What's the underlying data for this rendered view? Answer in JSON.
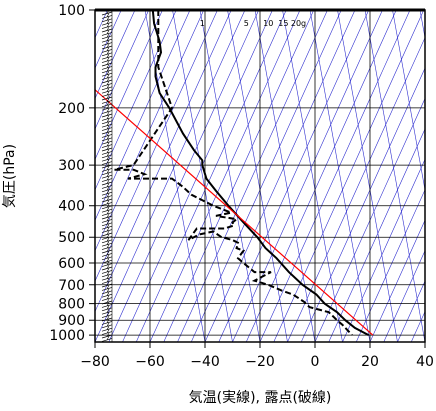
{
  "chart_data": {
    "type": "line",
    "title": "",
    "xlabel": "気温(実線), 露点(破線)",
    "ylabel": "気圧(hPa)",
    "xlim": [
      -80,
      40
    ],
    "ylim": [
      1050,
      100
    ],
    "y_scale": "log",
    "x_ticks": [
      -80,
      -60,
      -40,
      -20,
      0,
      20,
      40
    ],
    "x_tick_labels": [
      "−80",
      "−60",
      "−40",
      "−20",
      "0",
      "20",
      "40"
    ],
    "y_ticks": [
      100,
      200,
      300,
      400,
      500,
      600,
      700,
      800,
      900,
      1000
    ],
    "y_tick_labels": [
      "100",
      "200",
      "300",
      "400",
      "500",
      "600",
      "700",
      "800",
      "900",
      "1000"
    ],
    "grid": true,
    "mixing_ratio_labels": [
      "1",
      "5",
      "10",
      "15",
      "20g"
    ],
    "colors": {
      "temperature": "#000000",
      "dewpoint": "#000000",
      "reference": "#ff0000",
      "isotherms": "#3030d0",
      "grid": "#000000",
      "wind_barbs": "#000000"
    },
    "series": [
      {
        "name": "",
        "style": "solid",
        "points": [
          [
            -59.0,
            100
          ],
          [
            -58.5,
            110
          ],
          [
            -56.5,
            125
          ],
          [
            -56.0,
            135
          ],
          [
            -58.0,
            150
          ],
          [
            -58.0,
            160
          ],
          [
            -56.5,
            180
          ],
          [
            -53.0,
            200
          ],
          [
            -48.0,
            240
          ],
          [
            -44.0,
            270
          ],
          [
            -41.0,
            290
          ],
          [
            -41.0,
            300
          ],
          [
            -39.5,
            330
          ],
          [
            -36.0,
            360
          ],
          [
            -31.5,
            400
          ],
          [
            -26.0,
            450
          ],
          [
            -21.0,
            500
          ],
          [
            -18.0,
            540
          ],
          [
            -14.0,
            580
          ],
          [
            -9.5,
            640
          ],
          [
            -4.5,
            700
          ],
          [
            0.5,
            750
          ],
          [
            3.5,
            800
          ],
          [
            8.0,
            850
          ],
          [
            11.0,
            900
          ],
          [
            14.5,
            950
          ],
          [
            19.5,
            1000
          ]
        ]
      },
      {
        "name": "",
        "style": "dashed",
        "points": [
          [
            -57.0,
            100
          ],
          [
            -57.0,
            120
          ],
          [
            -57.0,
            150
          ],
          [
            -52.0,
            200
          ],
          [
            -66.0,
            300
          ],
          [
            -73.0,
            310
          ],
          [
            -66.0,
            310
          ],
          [
            -62.0,
            320
          ],
          [
            -68.0,
            330
          ],
          [
            -52.0,
            330
          ],
          [
            -48.0,
            350
          ],
          [
            -45.0,
            370
          ],
          [
            -37.0,
            400
          ],
          [
            -30.5,
            420
          ],
          [
            -36.0,
            430
          ],
          [
            -28.5,
            440
          ],
          [
            -30.0,
            450
          ],
          [
            -29.5,
            460
          ],
          [
            -33.0,
            470
          ],
          [
            -43.0,
            470
          ],
          [
            -46.0,
            510
          ],
          [
            -42.0,
            490
          ],
          [
            -37.0,
            480
          ],
          [
            -34.0,
            500
          ],
          [
            -30.0,
            510
          ],
          [
            -28.0,
            520
          ],
          [
            -28.5,
            540
          ],
          [
            -26.0,
            550
          ],
          [
            -28.0,
            580
          ],
          [
            -26.0,
            600
          ],
          [
            -22.0,
            640
          ],
          [
            -16.0,
            640
          ],
          [
            -22.0,
            680
          ],
          [
            -17.0,
            700
          ],
          [
            -12.0,
            730
          ],
          [
            -8.0,
            750
          ],
          [
            -4.0,
            790
          ],
          [
            -2.0,
            820
          ],
          [
            5.0,
            850
          ],
          [
            8.0,
            900
          ],
          [
            10.0,
            930
          ],
          [
            13.5,
            1000
          ]
        ]
      },
      {
        "name": "",
        "style": "reference",
        "points": [
          [
            21.0,
            1000
          ],
          [
            -82.0,
            170
          ]
        ]
      }
    ]
  }
}
